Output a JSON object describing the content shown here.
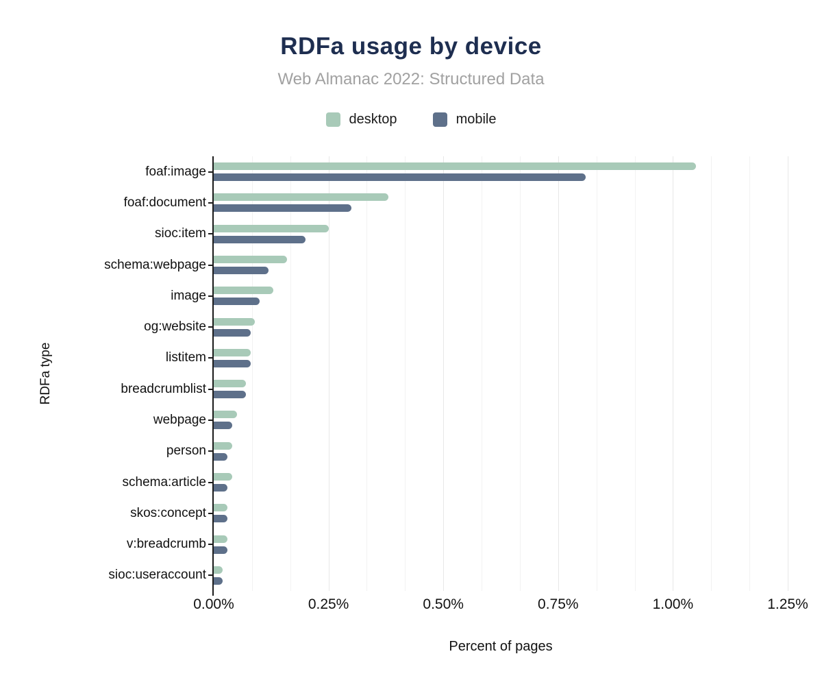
{
  "title": "RDFa usage by device",
  "subtitle": "Web Almanac 2022: Structured Data",
  "legend": {
    "items": [
      {
        "label": "desktop",
        "color": "#a8cab8"
      },
      {
        "label": "mobile",
        "color": "#5e708a"
      }
    ],
    "position": "top"
  },
  "colors": {
    "title": "#1e2e50",
    "subtitle": "#a1a1a1",
    "axis": "#1a1a1a",
    "grid_minor": "#f2f2f2",
    "grid_major": "#e7e7e7",
    "background": "#ffffff"
  },
  "chart_data": {
    "type": "bar",
    "orientation": "horizontal",
    "title": "RDFa usage by device",
    "subtitle": "Web Almanac 2022: Structured Data",
    "xlabel": "Percent of pages",
    "ylabel": "RDFa type",
    "xlim": [
      0,
      1.25
    ],
    "x_ticks": [
      "0.00%",
      "0.25%",
      "0.50%",
      "0.75%",
      "1.00%",
      "1.25%"
    ],
    "x_tick_values": [
      0,
      0.25,
      0.5,
      0.75,
      1.0,
      1.25
    ],
    "grid": {
      "vertical": true,
      "horizontal": false,
      "minor_divisions_per_major": 3
    },
    "legend_position": "top",
    "value_unit": "percent",
    "categories": [
      "foaf:image",
      "foaf:document",
      "sioc:item",
      "schema:webpage",
      "image",
      "og:website",
      "listitem",
      "breadcrumblist",
      "webpage",
      "person",
      "schema:article",
      "skos:concept",
      "v:breadcrumb",
      "sioc:useraccount"
    ],
    "series": [
      {
        "name": "desktop",
        "color": "#a8cab8",
        "values": [
          1.05,
          0.38,
          0.25,
          0.16,
          0.13,
          0.09,
          0.08,
          0.07,
          0.05,
          0.04,
          0.04,
          0.03,
          0.03,
          0.02
        ]
      },
      {
        "name": "mobile",
        "color": "#5e708a",
        "values": [
          0.81,
          0.3,
          0.2,
          0.12,
          0.1,
          0.08,
          0.08,
          0.07,
          0.04,
          0.03,
          0.03,
          0.03,
          0.03,
          0.02
        ]
      }
    ]
  }
}
